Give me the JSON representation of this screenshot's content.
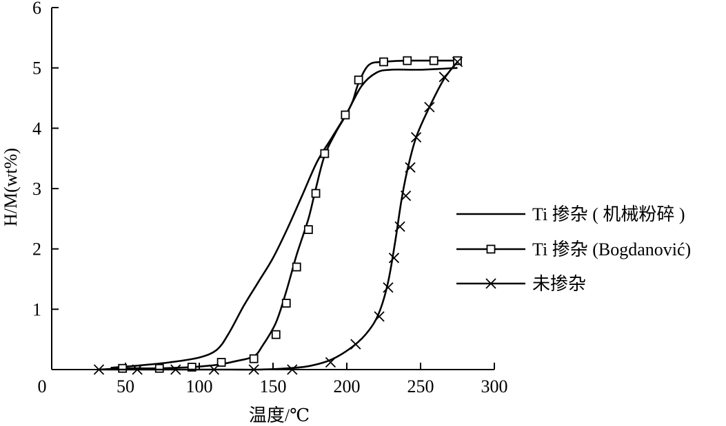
{
  "chart_data": {
    "type": "line",
    "xlabel": "温度/℃",
    "ylabel": "H/M(wt%)",
    "xlim": [
      0,
      300
    ],
    "ylim": [
      0,
      6
    ],
    "xticks": [
      0,
      50,
      100,
      150,
      200,
      250,
      300
    ],
    "yticks": [
      1,
      2,
      3,
      4,
      5,
      6
    ],
    "grid": false,
    "legend_position": "right",
    "series": [
      {
        "name": "Ti 掺杂 ( 机械粉碎 )",
        "marker": "none",
        "x": [
          40,
          60,
          80,
          100,
          112,
          120,
          130,
          140,
          150,
          160,
          170,
          180,
          190,
          200,
          210,
          220,
          230,
          250,
          275
        ],
        "y": [
          0.03,
          0.07,
          0.12,
          0.2,
          0.33,
          0.6,
          1.05,
          1.45,
          1.85,
          2.35,
          2.9,
          3.45,
          3.85,
          4.25,
          4.7,
          4.92,
          4.97,
          4.97,
          5.0
        ]
      },
      {
        "name": "Ti 掺杂 (Bogdanović)",
        "marker": "square",
        "x": [
          32,
          40,
          48,
          60,
          72,
          84,
          94,
          105,
          115,
          125,
          137,
          143,
          152,
          159,
          166,
          174,
          179,
          185,
          193,
          199,
          204,
          208,
          215,
          225,
          241,
          259,
          275
        ],
        "y": [
          0.0,
          0.01,
          0.02,
          0.02,
          0.02,
          0.03,
          0.04,
          0.06,
          0.09,
          0.14,
          0.22,
          0.4,
          0.78,
          1.3,
          1.9,
          2.5,
          3.0,
          3.55,
          3.95,
          4.2,
          4.45,
          4.75,
          5.05,
          5.1,
          5.12,
          5.12,
          5.12
        ],
        "markers_x": [
          48,
          73,
          95,
          115,
          137,
          152,
          159,
          166,
          174,
          179,
          185,
          199,
          208,
          225,
          241,
          259,
          275
        ],
        "markers_y": [
          0.02,
          0.02,
          0.04,
          0.12,
          0.18,
          0.58,
          1.1,
          1.7,
          2.32,
          2.92,
          3.58,
          4.22,
          4.8,
          5.1,
          5.12,
          5.12,
          5.12
        ]
      },
      {
        "name": "未掺杂",
        "marker": "cross",
        "x": [
          32,
          60,
          90,
          120,
          140,
          160,
          175,
          190,
          205,
          215,
          222,
          228,
          233,
          237,
          241,
          247,
          256,
          266,
          275
        ],
        "y": [
          0.0,
          0.0,
          0.0,
          0.0,
          0.0,
          0.02,
          0.06,
          0.17,
          0.4,
          0.65,
          0.95,
          1.45,
          2.15,
          2.8,
          3.3,
          3.85,
          4.35,
          4.82,
          5.1
        ],
        "markers_x": [
          32,
          58,
          84,
          110,
          137,
          163,
          189,
          206,
          222,
          228,
          232,
          236,
          240,
          243,
          247,
          256,
          266,
          275
        ],
        "markers_y": [
          0.0,
          0.0,
          0.0,
          0.0,
          0.0,
          0.0,
          0.12,
          0.42,
          0.88,
          1.36,
          1.85,
          2.37,
          2.88,
          3.35,
          3.85,
          4.35,
          4.85,
          5.1
        ]
      }
    ]
  }
}
